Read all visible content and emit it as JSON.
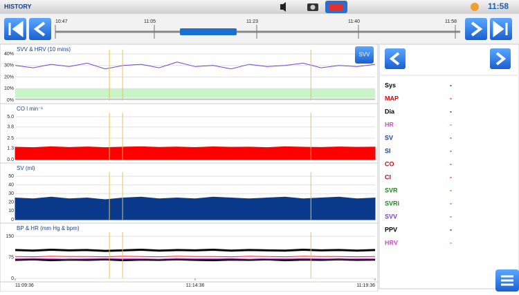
{
  "header": {
    "title": "HISTORY",
    "clock": "11:58"
  },
  "timeline": {
    "labels": [
      "10:47",
      "11:05",
      "11:23",
      "11:40",
      "11:58"
    ]
  },
  "panel": {
    "params": [
      {
        "name": "Sys",
        "value": "-",
        "color": "#000000"
      },
      {
        "name": "MAP",
        "value": "-",
        "color": "#e00000"
      },
      {
        "name": "Dia",
        "value": "-",
        "color": "#000000"
      },
      {
        "name": "HR",
        "value": "-",
        "color": "#e040e0"
      },
      {
        "name": "SV",
        "value": "-",
        "color": "#1a3fa0"
      },
      {
        "name": "SI",
        "value": "-",
        "color": "#1a3fa0"
      },
      {
        "name": "CO",
        "value": "-",
        "color": "#e00000"
      },
      {
        "name": "CI",
        "value": "-",
        "color": "#e00000"
      },
      {
        "name": "SVR",
        "value": "-",
        "color": "#1a8a1a"
      },
      {
        "name": "SVRi",
        "value": "-",
        "color": "#1a8a1a"
      },
      {
        "name": "SVV",
        "value": "-",
        "color": "#7a3fd0"
      },
      {
        "name": "PPV",
        "value": "-",
        "color": "#000000"
      },
      {
        "name": "HRV",
        "value": "-",
        "color": "#e040e0"
      }
    ]
  },
  "chart_data": [
    {
      "type": "line",
      "title": "SVV & HRV (10 mins)",
      "button": "SVV",
      "x": [
        "11:09:36",
        "11:10:06",
        "11:10:36",
        "11:11:06",
        "11:11:36",
        "11:12:06",
        "11:12:36",
        "11:13:06",
        "11:13:36",
        "11:14:06",
        "11:14:36",
        "11:15:06",
        "11:15:36",
        "11:16:06",
        "11:16:36",
        "11:17:06",
        "11:17:36",
        "11:18:06",
        "11:18:36",
        "11:19:06",
        "11:19:36"
      ],
      "xlim": [
        "11:09:36",
        "11:19:36"
      ],
      "ylim": [
        0,
        40
      ],
      "yticks": [
        {
          "value": 40,
          "label": "40%"
        },
        {
          "value": 30,
          "label": "30%"
        },
        {
          "value": 20,
          "label": "20%"
        },
        {
          "value": 10,
          "label": "10%"
        },
        {
          "value": 0,
          "label": "0%"
        }
      ],
      "band": [
        2,
        10
      ],
      "band_color": "#c8f5c8",
      "markers": [
        "11:12:13",
        "11:12:35",
        "11:17:49"
      ],
      "series": [
        {
          "color": "#7a3fd0",
          "values": [
            30,
            28,
            31,
            29,
            32,
            27,
            30,
            31,
            28,
            33,
            29,
            30,
            27,
            31,
            29,
            30,
            32,
            28,
            30,
            29,
            31
          ]
        },
        {
          "color": "#999999",
          "values": [
            1,
            1,
            1,
            1,
            1,
            1,
            1,
            1,
            1,
            1,
            1,
            1,
            1,
            1,
            1,
            1,
            1,
            1,
            1,
            1,
            1
          ]
        }
      ]
    },
    {
      "type": "area",
      "title": "CO l min⁻¹",
      "x": [
        "11:09:36",
        "11:10:06",
        "11:10:36",
        "11:11:06",
        "11:11:36",
        "11:12:06",
        "11:12:36",
        "11:13:06",
        "11:13:36",
        "11:14:06",
        "11:14:36",
        "11:15:06",
        "11:15:36",
        "11:16:06",
        "11:16:36",
        "11:17:06",
        "11:17:36",
        "11:18:06",
        "11:18:36",
        "11:19:06",
        "11:19:36"
      ],
      "xlim": [
        "11:09:36",
        "11:19:36"
      ],
      "ylim": [
        0,
        5
      ],
      "yticks": [
        {
          "value": 5,
          "label": "5.0"
        },
        3.8,
        2.5,
        1.3,
        {
          "value": 0,
          "label": "0.0"
        }
      ],
      "markers": [
        "11:12:13",
        "11:12:35",
        "11:17:49"
      ],
      "series": [
        {
          "color": "#ff0000",
          "values": [
            1.45,
            1.4,
            1.5,
            1.42,
            1.48,
            1.4,
            1.46,
            1.5,
            1.43,
            1.47,
            1.41,
            1.49,
            1.44,
            1.46,
            1.4,
            1.5,
            1.45,
            1.42,
            1.48,
            1.44,
            1.46
          ]
        }
      ]
    },
    {
      "type": "area",
      "title": "SV (ml)",
      "x": [
        "11:09:36",
        "11:10:06",
        "11:10:36",
        "11:11:06",
        "11:11:36",
        "11:12:06",
        "11:12:36",
        "11:13:06",
        "11:13:36",
        "11:14:06",
        "11:14:36",
        "11:15:06",
        "11:15:36",
        "11:16:06",
        "11:16:36",
        "11:17:06",
        "11:17:36",
        "11:18:06",
        "11:18:36",
        "11:19:06",
        "11:19:36"
      ],
      "xlim": [
        "11:09:36",
        "11:19:36"
      ],
      "ylim": [
        0,
        50
      ],
      "yticks": [
        50,
        40,
        30,
        20,
        10,
        0
      ],
      "markers": [
        "11:12:13",
        "11:12:35",
        "11:17:49"
      ],
      "series": [
        {
          "color": "#0a3a8c",
          "values": [
            25,
            24,
            26,
            24,
            25,
            23,
            25,
            26,
            24,
            25,
            24,
            26,
            25,
            24,
            25,
            26,
            24,
            25,
            26,
            24,
            25
          ]
        }
      ]
    },
    {
      "type": "line",
      "title": "BP & HR (mm Hg & bpm)",
      "x": [
        "11:09:36",
        "11:10:06",
        "11:10:36",
        "11:11:06",
        "11:11:36",
        "11:12:06",
        "11:12:36",
        "11:13:06",
        "11:13:36",
        "11:14:06",
        "11:14:36",
        "11:15:06",
        "11:15:36",
        "11:16:06",
        "11:16:36",
        "11:17:06",
        "11:17:36",
        "11:18:06",
        "11:18:36",
        "11:19:06",
        "11:19:36"
      ],
      "xlim": [
        "11:09:36",
        "11:19:36"
      ],
      "ylim": [
        0,
        150
      ],
      "yticks": [
        150,
        75,
        0
      ],
      "xticks": [
        "11:09:36",
        "11:14:36",
        "11:19:36"
      ],
      "markers": [
        "11:12:13",
        "11:12:35",
        "11:17:49"
      ],
      "series": [
        {
          "color": "#000000",
          "values": [
            101,
            99,
            102,
            100,
            101,
            98,
            100,
            102,
            99,
            101,
            100,
            102,
            99,
            101,
            100,
            99,
            102,
            100,
            101,
            99,
            101
          ]
        },
        {
          "color": "#000000",
          "values": [
            66,
            68,
            65,
            67,
            66,
            68,
            65,
            67,
            66,
            68,
            66,
            65,
            67,
            66,
            68,
            65,
            67,
            66,
            68,
            66,
            67
          ]
        },
        {
          "color": "#ff2020",
          "values": [
            78,
            77,
            79,
            78,
            78,
            77,
            79,
            78,
            77,
            79,
            78,
            78,
            77,
            79,
            78,
            77,
            79,
            78,
            78,
            77,
            78
          ]
        },
        {
          "color": "#e040e0",
          "values": [
            70,
            71,
            70,
            69,
            70,
            71,
            70,
            70,
            69,
            71,
            70,
            70,
            71,
            69,
            70,
            70,
            71,
            70,
            69,
            70,
            70
          ]
        }
      ]
    }
  ]
}
